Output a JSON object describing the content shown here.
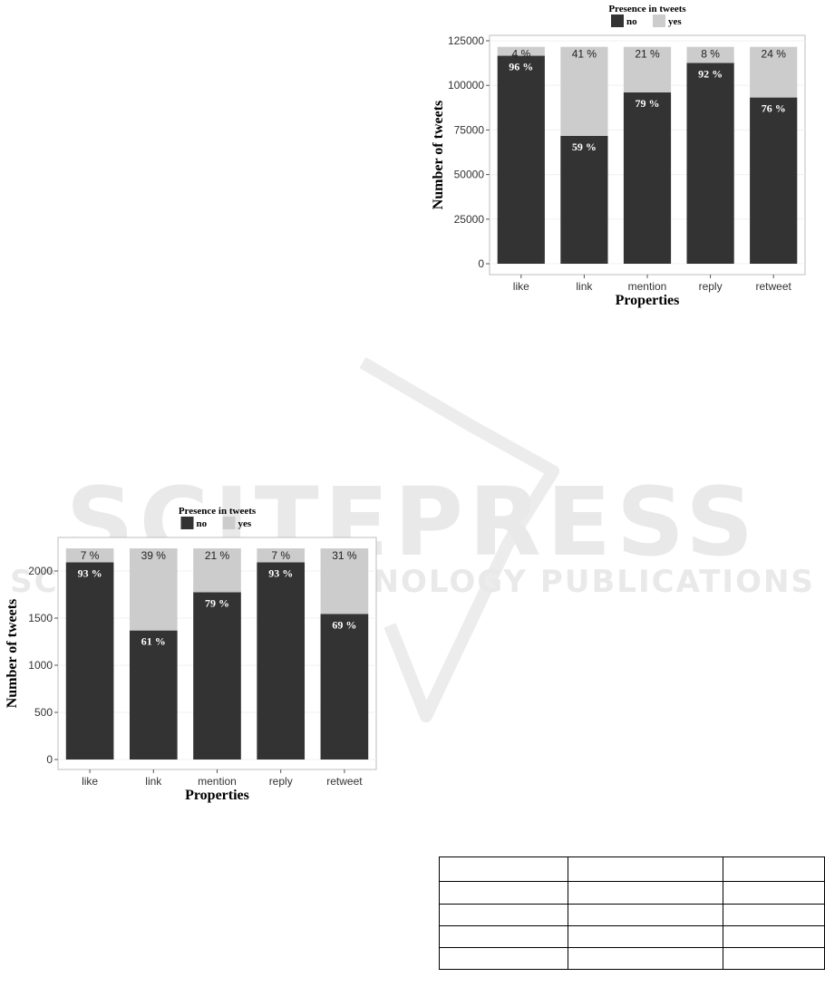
{
  "watermark": {
    "logo_text": "SCITEPRESS",
    "logo_subtext": "SCIENCE AND TECHNOLOGY PUBLICATIONS"
  },
  "colors": {
    "no": "#333333",
    "yes": "#cccccc",
    "panel_border": "#bdbdbd",
    "grid": "#f0f0f0"
  },
  "chart_data": [
    {
      "type": "bar",
      "stacked": true,
      "legend_title": "Presence in tweets",
      "legend_position": "top",
      "xlabel": "Properties",
      "ylabel": "Number of tweets",
      "categories": [
        "like",
        "link",
        "mention",
        "reply",
        "retweet"
      ],
      "ylim": [
        0,
        125000
      ],
      "yticks": [
        0,
        25000,
        50000,
        75000,
        100000,
        125000
      ],
      "grid": true,
      "series": [
        {
          "name": "no",
          "values": [
            116600,
            71700,
            96100,
            112600,
            93200
          ],
          "labels": [
            "96 %",
            "59 %",
            "79 %",
            "92 %",
            "76 %"
          ]
        },
        {
          "name": "yes",
          "values": [
            5000,
            49900,
            25500,
            9000,
            28400
          ],
          "labels": [
            "4 %",
            "41 %",
            "21 %",
            "8 %",
            "24 %"
          ]
        }
      ]
    },
    {
      "type": "bar",
      "stacked": true,
      "legend_title": "Presence in tweets",
      "legend_position": "top",
      "xlabel": "Properties",
      "ylabel": "Number of tweets",
      "categories": [
        "like",
        "link",
        "mention",
        "reply",
        "retweet"
      ],
      "ylim": [
        0,
        2250
      ],
      "yticks": [
        0,
        500,
        1000,
        1500,
        2000
      ],
      "grid": true,
      "series": [
        {
          "name": "no",
          "values": [
            2092,
            1369,
            1775,
            2092,
            1545
          ],
          "labels": [
            "93 %",
            "61 %",
            "79 %",
            "93 %",
            "69 %"
          ]
        },
        {
          "name": "yes",
          "values": [
            148,
            871,
            465,
            148,
            695
          ],
          "labels": [
            "7 %",
            "39 %",
            "21 %",
            "7 %",
            "31 %"
          ]
        }
      ]
    }
  ],
  "table": {
    "rows": [
      [
        "",
        "",
        ""
      ],
      [
        "",
        "",
        ""
      ],
      [
        "",
        "",
        ""
      ],
      [
        "",
        "",
        ""
      ],
      [
        "",
        "",
        ""
      ]
    ]
  }
}
